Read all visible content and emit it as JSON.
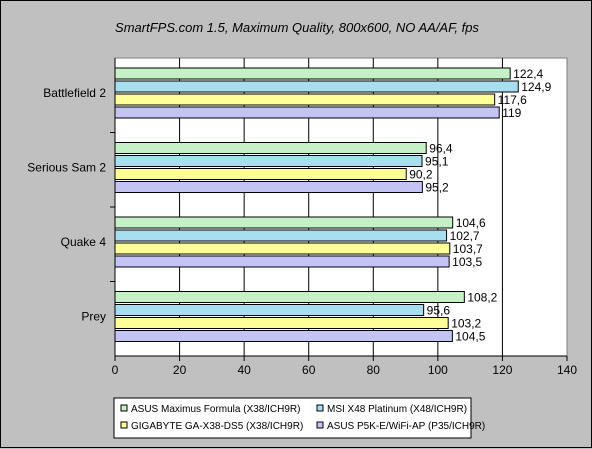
{
  "chart_data": {
    "type": "bar",
    "orientation": "horizontal",
    "title": "SmartFPS.com 1.5, Maximum Quality, 800x600, NO AA/AF, fps",
    "categories": [
      "Battlefield 2",
      "Serious Sam 2",
      "Quake 4",
      "Prey"
    ],
    "series": [
      {
        "name": "ASUS Maximus Formula (X38/ICH9R)",
        "color": "#c6f0c6",
        "values": [
          122.4,
          96.4,
          104.6,
          108.2
        ],
        "labels": [
          "122,4",
          "96,4",
          "104,6",
          "108,2"
        ]
      },
      {
        "name": "MSI X48 Platinum (X48/ICH9R)",
        "color": "#a8dff0",
        "values": [
          124.9,
          95.1,
          102.7,
          95.6
        ],
        "labels": [
          "124,9",
          "95,1",
          "102,7",
          "95,6"
        ]
      },
      {
        "name": "GIGABYTE GA-X38-DS5 (X38/ICH9R)",
        "color": "#ffff99",
        "values": [
          117.6,
          90.2,
          103.7,
          103.2
        ],
        "labels": [
          "117,6",
          "90,2",
          "103,7",
          "103,2"
        ]
      },
      {
        "name": "ASUS P5K-E/WiFi-AP (P35/ICH9R)",
        "color": "#c4c4f4",
        "values": [
          119,
          95.2,
          103.5,
          104.5
        ],
        "labels": [
          "119",
          "95,2",
          "103,5",
          "104,5"
        ]
      }
    ],
    "xlim": [
      0,
      140
    ],
    "xticks": [
      0,
      20,
      40,
      60,
      80,
      100,
      120,
      140
    ],
    "xtick_labels": [
      "0",
      "20",
      "40",
      "60",
      "80",
      "100",
      "120",
      "140"
    ],
    "xlabel": "",
    "ylabel": "",
    "grid": "vertical",
    "legend": "bottom",
    "plot_background": "#ffffff"
  }
}
